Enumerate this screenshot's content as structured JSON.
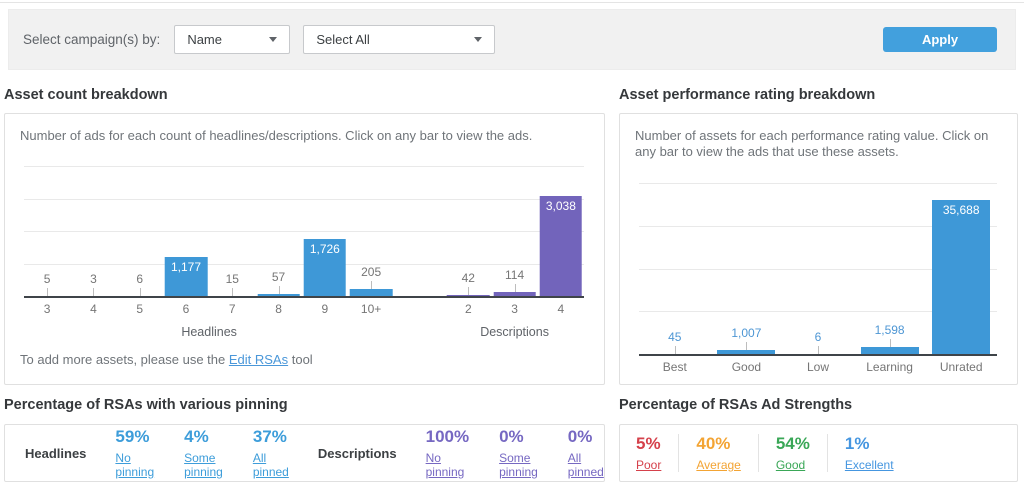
{
  "filters": {
    "label": "Select campaign(s) by:",
    "sort_by": {
      "value": "Name"
    },
    "campaigns": {
      "value": "Select All"
    },
    "apply_label": "Apply"
  },
  "chart_data": [
    {
      "type": "bar",
      "title": "Asset count breakdown",
      "description": "Number of ads for each count of headlines/descriptions. Click on any bar to view the ads.",
      "ylim": [
        0,
        4000
      ],
      "grid": true,
      "gridline_step": 1000,
      "legend": "none",
      "value_label_color": "#757575",
      "groups": [
        {
          "name": "Headlines",
          "color": "#3e98d7",
          "categories": [
            "3",
            "4",
            "5",
            "6",
            "7",
            "8",
            "9",
            "10+"
          ],
          "values": [
            5,
            3,
            6,
            1177,
            15,
            57,
            1726,
            205
          ]
        },
        {
          "name": "Descriptions",
          "color": "#7264bb",
          "categories": [
            "2",
            "3",
            "4"
          ],
          "values": [
            42,
            114,
            3038
          ]
        }
      ]
    },
    {
      "type": "bar",
      "title": "Asset performance rating breakdown",
      "description": "Number of assets for each performance rating value. Click on any bar to view the ads that use these assets.",
      "ylim": [
        0,
        40000
      ],
      "grid": true,
      "gridline_step": 10000,
      "legend": "none",
      "value_label_color": "#4d96d4",
      "color": "#3e98d7",
      "categories": [
        "Best",
        "Good",
        "Low",
        "Learning",
        "Unrated"
      ],
      "values": [
        45,
        1007,
        6,
        1598,
        35688
      ]
    }
  ],
  "asset_count_footnote": {
    "prefix": "To add more assets, please use the ",
    "link_text": "Edit RSAs",
    "suffix": " tool"
  },
  "pinning": {
    "title": "Percentage of RSAs with various pinning",
    "headlines_label": "Headlines",
    "descriptions_label": "Descriptions",
    "headlines": [
      {
        "pct": "59%",
        "label": "No pinning"
      },
      {
        "pct": "4%",
        "label": "Some pinning"
      },
      {
        "pct": "37%",
        "label": "All pinned"
      }
    ],
    "descriptions": [
      {
        "pct": "100%",
        "label": "No pinning"
      },
      {
        "pct": "0%",
        "label": "Some pinning"
      },
      {
        "pct": "0%",
        "label": "All pinned"
      }
    ]
  },
  "ad_strengths": {
    "title": "Percentage of RSAs Ad Strengths",
    "items": [
      {
        "pct": "5%",
        "label": "Poor",
        "color": "#d5414b"
      },
      {
        "pct": "40%",
        "label": "Average",
        "color": "#f3a434"
      },
      {
        "pct": "54%",
        "label": "Good",
        "color": "#3aa757"
      },
      {
        "pct": "1%",
        "label": "Excellent",
        "color": "#4596e0"
      }
    ]
  },
  "colors": {
    "headlines_accent": "#3d9dda",
    "descriptions_accent": "#7668c2",
    "link": "#4a97d9",
    "apply_button": "#42a0dd",
    "bar_blue": "#3e98d7",
    "bar_purple": "#7264bb"
  }
}
